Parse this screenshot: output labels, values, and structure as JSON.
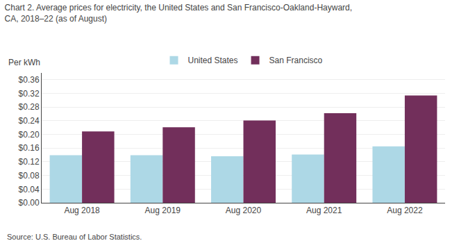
{
  "chart_data": {
    "type": "bar",
    "title": "Chart 2. Average prices for electricity, the United States and San Francisco-Oakland-Hayward,\nCA, 2018–22 (as of August)",
    "ylabel": "Per kWh",
    "annotations": [
      "Source: U.S. Bureau of Labor Statistics."
    ],
    "categories": [
      "Aug 2018",
      "Aug 2019",
      "Aug 2020",
      "Aug 2021",
      "Aug 2022"
    ],
    "series": [
      {
        "name": "United States",
        "color": "#ADD8E6",
        "values": [
          0.139,
          0.139,
          0.136,
          0.141,
          0.165
        ]
      },
      {
        "name": "San Francisco",
        "color": "#722F5B",
        "values": [
          0.209,
          0.221,
          0.241,
          0.262,
          0.314
        ]
      }
    ],
    "ylim": [
      0,
      0.38
    ],
    "yticks": [
      {
        "value": 0.0,
        "label": "$0.00"
      },
      {
        "value": 0.04,
        "label": "$0.04"
      },
      {
        "value": 0.08,
        "label": "$0.08"
      },
      {
        "value": 0.12,
        "label": "$0.12"
      },
      {
        "value": 0.16,
        "label": "$0.16"
      },
      {
        "value": 0.2,
        "label": "$0.20"
      },
      {
        "value": 0.24,
        "label": "$0.24"
      },
      {
        "value": 0.28,
        "label": "$0.28"
      },
      {
        "value": 0.32,
        "label": "$0.32"
      },
      {
        "value": 0.36,
        "label": "$0.36"
      }
    ],
    "grid": true,
    "legend": "top"
  }
}
